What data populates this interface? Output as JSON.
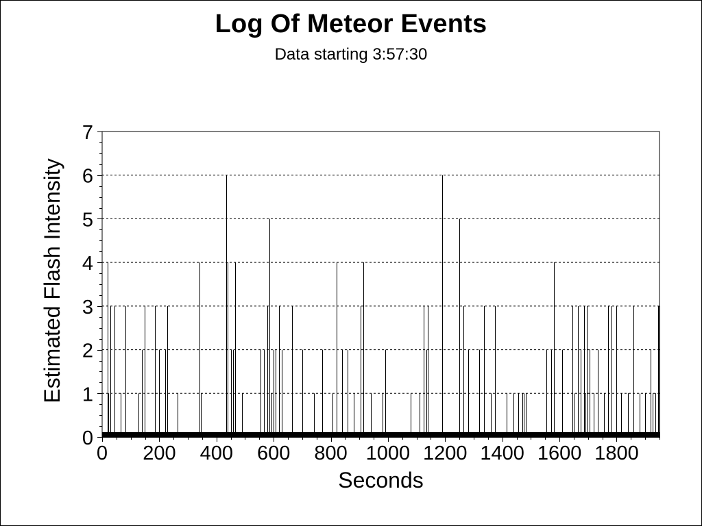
{
  "chart_data": {
    "type": "bar",
    "title": "Log Of Meteor Events",
    "subtitle": "Data starting 3:57:30",
    "xlabel": "Seconds",
    "ylabel": "Estimated Flash Intensity",
    "xlim": [
      0,
      1950
    ],
    "ylim": [
      0,
      7
    ],
    "x_ticks": [
      "0",
      "200",
      "400",
      "600",
      "800",
      "1000",
      "1200",
      "1400",
      "1600",
      "1800"
    ],
    "y_ticks": [
      "0",
      "1",
      "2",
      "3",
      "4",
      "5",
      "6",
      "7"
    ],
    "grid": "horizontal dashed",
    "baseline_value": 0,
    "colors": {
      "bars": "#000000",
      "grid": "#000000",
      "background": "#ffffff"
    },
    "series": [
      {
        "x": [
          18,
          22,
          28,
          42,
          65,
          82,
          128,
          140,
          148,
          185,
          200,
          220,
          228,
          265,
          340,
          345,
          435,
          440,
          450,
          458,
          465,
          490,
          555,
          565,
          578,
          585,
          592,
          600,
          608,
          618,
          628,
          665,
          700,
          742,
          770,
          805,
          820,
          840,
          858,
          880,
          905,
          915,
          940,
          980,
          990,
          1080,
          1110,
          1125,
          1135,
          1140,
          1190,
          1250,
          1265,
          1280,
          1320,
          1335,
          1360,
          1375,
          1415,
          1440,
          1455,
          1470,
          1475,
          1482,
          1555,
          1570,
          1580,
          1610,
          1645,
          1650,
          1665,
          1675,
          1685,
          1690,
          1695,
          1705,
          1720,
          1735,
          1755,
          1770,
          1780,
          1800,
          1815,
          1840,
          1860,
          1880,
          1900,
          1918,
          1925,
          1935,
          1945,
          1950
        ],
        "values": [
          4,
          1,
          3,
          3,
          1,
          3,
          1,
          2,
          3,
          3,
          2,
          2,
          3,
          1,
          4,
          1,
          6,
          4,
          2,
          2,
          4,
          1,
          2,
          2,
          3,
          5,
          1,
          2,
          2,
          3,
          2,
          3,
          2,
          1,
          2,
          1,
          4,
          2,
          2,
          1,
          3,
          4,
          1,
          1,
          2,
          1,
          1,
          3,
          2,
          3,
          6,
          5,
          3,
          2,
          2,
          3,
          1,
          3,
          1,
          1,
          1,
          1,
          1,
          1,
          2,
          2,
          4,
          2,
          3,
          1,
          3,
          2,
          3,
          1,
          3,
          2,
          1,
          2,
          1,
          3,
          3,
          3,
          1,
          1,
          3,
          1,
          1,
          2,
          1,
          1,
          3,
          3
        ]
      }
    ]
  }
}
